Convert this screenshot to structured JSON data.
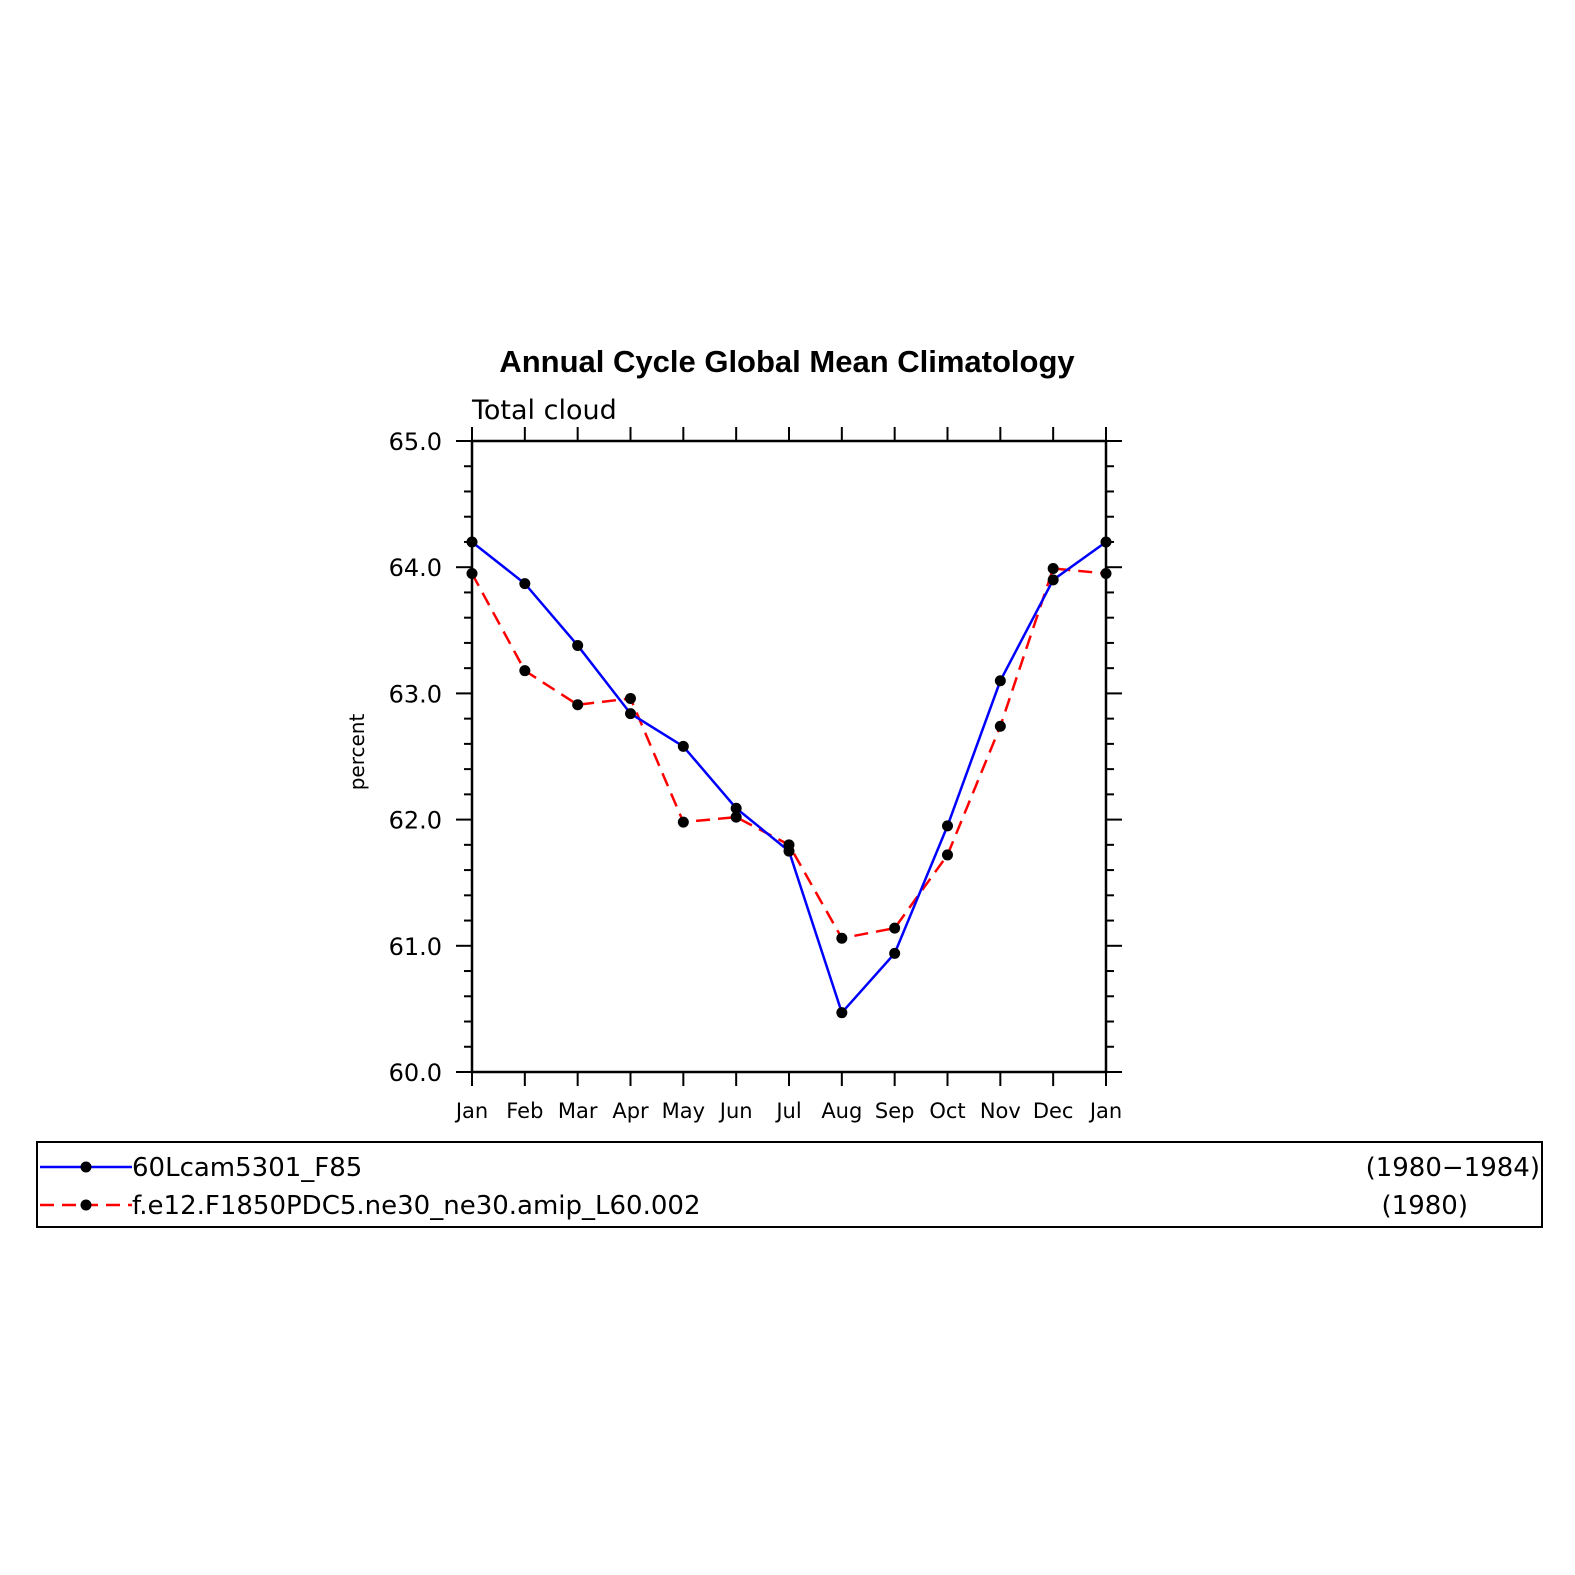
{
  "chart_data": {
    "type": "line",
    "title": "Annual Cycle Global Mean Climatology",
    "subtitle": "Total cloud",
    "ylabel": "percent",
    "xlabel": "",
    "categories": [
      "Jan",
      "Feb",
      "Mar",
      "Apr",
      "May",
      "Jun",
      "Jul",
      "Aug",
      "Sep",
      "Oct",
      "Nov",
      "Dec",
      "Jan"
    ],
    "ylim": [
      60.0,
      65.0
    ],
    "yticks": [
      "60.0",
      "61.0",
      "62.0",
      "63.0",
      "64.0",
      "65.0"
    ],
    "grid": false,
    "legend_position": "bottom",
    "series": [
      {
        "name": "60Lcam5301_F85",
        "period": "(1980−1984)",
        "color": "#0000ff",
        "line_style": "solid",
        "values": [
          64.2,
          63.87,
          63.38,
          62.84,
          62.58,
          62.09,
          61.75,
          60.47,
          60.94,
          61.95,
          63.1,
          63.9,
          64.2
        ]
      },
      {
        "name": "f.e12.F1850PDC5.ne30_ne30.amip_L60.002",
        "period": "(1980)",
        "color": "#ff0000",
        "line_style": "dashed",
        "values": [
          63.95,
          63.18,
          62.91,
          62.96,
          61.98,
          62.02,
          61.8,
          61.06,
          61.14,
          61.72,
          62.74,
          63.99,
          63.95
        ]
      }
    ]
  }
}
